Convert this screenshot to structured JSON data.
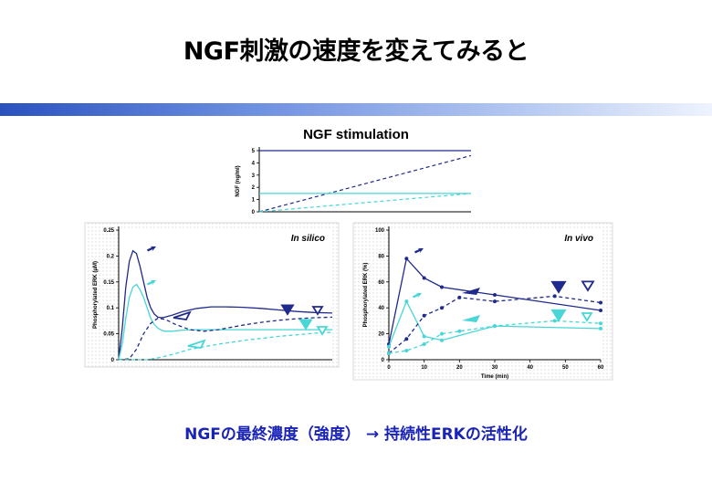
{
  "slide": {
    "title": "NGF刺激の速度を変えてみると",
    "subtitle": "NGF stimulation",
    "caption": "NGFの最終濃度（強度） → 持続性ERKの活性化"
  },
  "colors": {
    "dark": "#1f2a8c",
    "light": "#48d6d6",
    "accent_bar": "#2a52be"
  },
  "chart_data": [
    {
      "id": "ngf-input",
      "type": "line",
      "ylabel": "NGF (ng/ml)",
      "ylim": [
        0,
        5
      ],
      "yticks": [
        "0",
        "1",
        "2",
        "3",
        "4",
        "5"
      ],
      "series": [
        {
          "style": "solid",
          "color": "dark",
          "x": [
            0,
            1
          ],
          "y": [
            5,
            5
          ]
        },
        {
          "style": "dashed",
          "color": "dark",
          "x": [
            0,
            1
          ],
          "y": [
            0,
            4.6
          ]
        },
        {
          "style": "solid",
          "color": "light",
          "x": [
            0,
            1
          ],
          "y": [
            1.5,
            1.5
          ]
        },
        {
          "style": "dashed",
          "color": "light",
          "x": [
            0,
            1
          ],
          "y": [
            0,
            1.5
          ]
        }
      ]
    },
    {
      "id": "in-silico",
      "type": "line",
      "label": "In silico",
      "ylabel": "Phosphorylated ERK (μM)",
      "xlim": [
        0,
        60
      ],
      "ylim": [
        0,
        0.25
      ],
      "yticks": [
        "0",
        "0.05",
        "0.1",
        "0.15",
        "0.2",
        "0.25"
      ],
      "series": [
        {
          "style": "solid",
          "color": "dark",
          "x": [
            0,
            1,
            2,
            3,
            4,
            5,
            6,
            7,
            8,
            9,
            10,
            11,
            12,
            13,
            15,
            18,
            22,
            26,
            30,
            35,
            40,
            45,
            50,
            55,
            60
          ],
          "y": [
            0,
            0.06,
            0.14,
            0.19,
            0.21,
            0.205,
            0.18,
            0.15,
            0.12,
            0.1,
            0.088,
            0.082,
            0.081,
            0.082,
            0.086,
            0.093,
            0.099,
            0.102,
            0.102,
            0.101,
            0.099,
            0.096,
            0.093,
            0.091,
            0.09
          ]
        },
        {
          "style": "solid",
          "color": "light",
          "x": [
            0,
            1,
            2,
            3,
            4,
            5,
            6,
            7,
            8,
            9,
            10,
            11,
            12,
            13,
            15,
            18,
            22,
            26,
            30,
            35,
            40,
            45,
            50,
            55,
            60
          ],
          "y": [
            0,
            0.03,
            0.08,
            0.12,
            0.14,
            0.145,
            0.135,
            0.12,
            0.1,
            0.08,
            0.068,
            0.061,
            0.057,
            0.055,
            0.055,
            0.057,
            0.058,
            0.058,
            0.058,
            0.058,
            0.058,
            0.058,
            0.058,
            0.058,
            0.058
          ]
        },
        {
          "style": "dashed",
          "color": "dark",
          "x": [
            0,
            3,
            5,
            7,
            9,
            11,
            13,
            16,
            20,
            24,
            28,
            32,
            36,
            40,
            45,
            50,
            55,
            60
          ],
          "y": [
            0,
            0.002,
            0.02,
            0.05,
            0.07,
            0.08,
            0.078,
            0.068,
            0.058,
            0.055,
            0.058,
            0.063,
            0.068,
            0.072,
            0.076,
            0.079,
            0.081,
            0.082
          ]
        },
        {
          "style": "dashed",
          "color": "light",
          "x": [
            0,
            4,
            8,
            12,
            16,
            20,
            24,
            28,
            32,
            36,
            40,
            45,
            50,
            55,
            60
          ],
          "y": [
            0,
            0.0,
            0.0,
            0.005,
            0.012,
            0.02,
            0.025,
            0.03,
            0.034,
            0.038,
            0.041,
            0.045,
            0.048,
            0.051,
            0.053
          ]
        }
      ]
    },
    {
      "id": "in-vivo",
      "type": "line",
      "label": "In vivo",
      "ylabel": "Phosphorylated ERK (%)",
      "xlabel": "Time (min)",
      "xlim": [
        0,
        60
      ],
      "ylim": [
        0,
        100
      ],
      "xticks": [
        "0",
        "10",
        "20",
        "30",
        "40",
        "50",
        "60"
      ],
      "yticks": [
        "0",
        "20",
        "40",
        "60",
        "80",
        "100"
      ],
      "series": [
        {
          "style": "solid",
          "color": "dark",
          "x": [
            0,
            5,
            10,
            15,
            30,
            60
          ],
          "y": [
            12,
            78,
            63,
            56,
            50,
            38
          ]
        },
        {
          "style": "solid",
          "color": "light",
          "x": [
            0,
            5,
            10,
            15,
            30,
            60
          ],
          "y": [
            10,
            45,
            18,
            15,
            26,
            24
          ]
        },
        {
          "style": "dashed",
          "color": "dark",
          "x": [
            0,
            5,
            10,
            15,
            20,
            30,
            47,
            60
          ],
          "y": [
            5,
            16,
            34,
            40,
            48,
            45,
            49,
            44
          ]
        },
        {
          "style": "dashed",
          "color": "light",
          "x": [
            0,
            5,
            10,
            15,
            20,
            30,
            47,
            60
          ],
          "y": [
            5,
            7,
            12,
            20,
            22,
            26,
            30,
            28
          ]
        }
      ]
    }
  ]
}
